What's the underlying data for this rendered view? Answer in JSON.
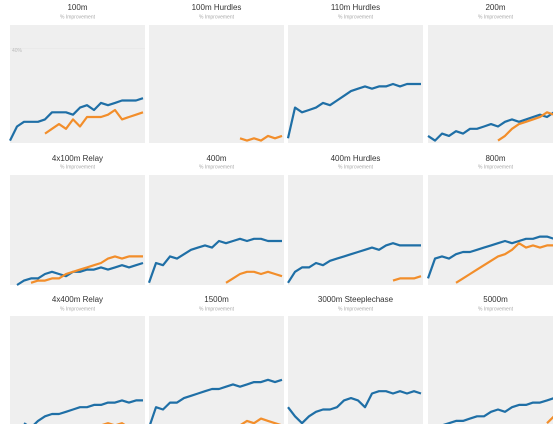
{
  "chart_data": [
    {
      "type": "line",
      "title": "100m",
      "subtitle": "% Improvement",
      "ylim": [
        0,
        50
      ],
      "yticks": [
        {
          "value": 40,
          "label": "40%"
        }
      ],
      "series": [
        {
          "color": "#1f6fa6",
          "values": [
            1,
            7,
            9,
            9,
            9,
            10,
            13,
            13,
            13,
            12,
            15,
            16,
            14,
            17,
            16,
            17,
            18,
            18,
            18,
            19
          ]
        },
        {
          "color": "#f28e2b",
          "values": [
            null,
            null,
            null,
            null,
            null,
            4,
            6,
            8,
            6,
            10,
            7,
            11,
            11,
            11,
            12,
            14,
            10,
            11,
            12,
            13
          ]
        }
      ]
    },
    {
      "type": "line",
      "title": "100m Hurdles",
      "subtitle": "% Improvement",
      "ylim": [
        0,
        50
      ],
      "series": [
        {
          "color": "#f28e2b",
          "values": [
            null,
            null,
            null,
            null,
            null,
            null,
            null,
            null,
            null,
            null,
            null,
            null,
            null,
            2,
            1,
            2,
            1,
            3,
            2,
            3
          ]
        }
      ]
    },
    {
      "type": "line",
      "title": "110m Hurdles",
      "subtitle": "% Improvement",
      "ylim": [
        0,
        50
      ],
      "series": [
        {
          "color": "#1f6fa6",
          "values": [
            2,
            15,
            13,
            14,
            15,
            17,
            16,
            18,
            20,
            22,
            23,
            24,
            23,
            24,
            24,
            25,
            24,
            25,
            25,
            25
          ]
        }
      ]
    },
    {
      "type": "line",
      "title": "200m",
      "subtitle": "% Improvement",
      "ylim": [
        0,
        50
      ],
      "series": [
        {
          "color": "#1f6fa6",
          "values": [
            3,
            1,
            4,
            3,
            5,
            4,
            6,
            6,
            7,
            8,
            7,
            9,
            10,
            9,
            10,
            11,
            12,
            11,
            13,
            12
          ]
        },
        {
          "color": "#f28e2b",
          "values": [
            null,
            null,
            null,
            null,
            null,
            null,
            null,
            null,
            null,
            null,
            1,
            3,
            6,
            8,
            9,
            10,
            11,
            13,
            12,
            11
          ]
        }
      ]
    },
    {
      "type": "line",
      "title": "4x100m Relay",
      "subtitle": "% Improvement",
      "ylim": [
        0,
        50
      ],
      "series": [
        {
          "color": "#1f6fa6",
          "values": [
            null,
            0,
            2,
            3,
            3,
            5,
            6,
            5,
            4,
            6,
            6,
            7,
            7,
            8,
            7,
            8,
            9,
            8,
            9,
            10
          ]
        },
        {
          "color": "#f28e2b",
          "values": [
            null,
            null,
            null,
            1,
            2,
            2,
            3,
            3,
            5,
            6,
            7,
            8,
            9,
            10,
            12,
            13,
            12,
            13,
            13,
            13
          ]
        }
      ]
    },
    {
      "type": "line",
      "title": "400m",
      "subtitle": "% Improvement",
      "ylim": [
        0,
        50
      ],
      "series": [
        {
          "color": "#1f6fa6",
          "values": [
            1,
            10,
            9,
            13,
            12,
            14,
            16,
            17,
            18,
            17,
            20,
            19,
            20,
            21,
            20,
            21,
            21,
            20,
            20,
            20
          ]
        },
        {
          "color": "#f28e2b",
          "values": [
            null,
            null,
            null,
            null,
            null,
            null,
            null,
            null,
            null,
            null,
            null,
            1,
            3,
            5,
            6,
            6,
            5,
            6,
            5,
            4
          ]
        }
      ]
    },
    {
      "type": "line",
      "title": "400m Hurdles",
      "subtitle": "% Improvement",
      "ylim": [
        0,
        50
      ],
      "series": [
        {
          "color": "#1f6fa6",
          "values": [
            1,
            6,
            8,
            8,
            10,
            9,
            11,
            12,
            13,
            14,
            15,
            16,
            17,
            16,
            18,
            19,
            18,
            18,
            18,
            18
          ]
        },
        {
          "color": "#f28e2b",
          "values": [
            null,
            null,
            null,
            null,
            null,
            null,
            null,
            null,
            null,
            null,
            null,
            null,
            null,
            null,
            null,
            2,
            3,
            3,
            3,
            4
          ]
        }
      ]
    },
    {
      "type": "line",
      "title": "800m",
      "subtitle": "% Improvement",
      "ylim": [
        0,
        50
      ],
      "series": [
        {
          "color": "#1f6fa6",
          "values": [
            3,
            12,
            13,
            12,
            14,
            15,
            15,
            16,
            17,
            18,
            19,
            20,
            19,
            20,
            21,
            21,
            22,
            22,
            21,
            21
          ]
        },
        {
          "color": "#f28e2b",
          "values": [
            null,
            null,
            null,
            null,
            1,
            3,
            5,
            7,
            9,
            11,
            13,
            14,
            16,
            19,
            17,
            18,
            17,
            18,
            18,
            18
          ]
        }
      ]
    },
    {
      "type": "line",
      "title": "4x400m Relay",
      "subtitle": "% Improvement",
      "ylim": [
        0,
        50
      ],
      "series": [
        {
          "color": "#1f6fa6",
          "values": [
            null,
            null,
            3,
            1,
            4,
            6,
            7,
            7,
            8,
            9,
            10,
            10,
            11,
            11,
            12,
            12,
            13,
            12,
            13,
            13
          ]
        },
        {
          "color": "#f28e2b",
          "values": [
            null,
            null,
            null,
            null,
            null,
            null,
            null,
            null,
            null,
            null,
            null,
            null,
            1,
            2,
            3,
            2,
            3,
            1,
            2,
            2
          ]
        }
      ]
    },
    {
      "type": "line",
      "title": "1500m",
      "subtitle": "% Improvement",
      "ylim": [
        0,
        50
      ],
      "series": [
        {
          "color": "#1f6fa6",
          "values": [
            1,
            10,
            9,
            12,
            12,
            14,
            15,
            16,
            17,
            18,
            18,
            19,
            20,
            19,
            20,
            21,
            21,
            22,
            21,
            22
          ]
        },
        {
          "color": "#f28e2b",
          "values": [
            null,
            null,
            null,
            null,
            null,
            null,
            null,
            null,
            null,
            null,
            null,
            null,
            1,
            2,
            4,
            3,
            5,
            4,
            3,
            2
          ]
        }
      ]
    },
    {
      "type": "line",
      "title": "3000m Steeplechase",
      "subtitle": "% Improvement",
      "ylim": [
        0,
        50
      ],
      "series": [
        {
          "color": "#1f6fa6",
          "values": [
            10,
            6,
            3,
            6,
            8,
            9,
            9,
            10,
            13,
            14,
            13,
            10,
            16,
            17,
            17,
            16,
            17,
            16,
            17,
            16
          ]
        }
      ]
    },
    {
      "type": "line",
      "title": "5000m",
      "subtitle": "% Improvement",
      "ylim": [
        0,
        50
      ],
      "series": [
        {
          "color": "#1f6fa6",
          "values": [
            null,
            0,
            2,
            3,
            4,
            4,
            5,
            6,
            6,
            8,
            9,
            8,
            10,
            11,
            11,
            12,
            12,
            13,
            14,
            13
          ]
        },
        {
          "color": "#f28e2b",
          "values": [
            null,
            null,
            null,
            null,
            null,
            null,
            null,
            null,
            null,
            null,
            null,
            null,
            null,
            null,
            null,
            null,
            null,
            3,
            6,
            9
          ]
        }
      ]
    }
  ]
}
